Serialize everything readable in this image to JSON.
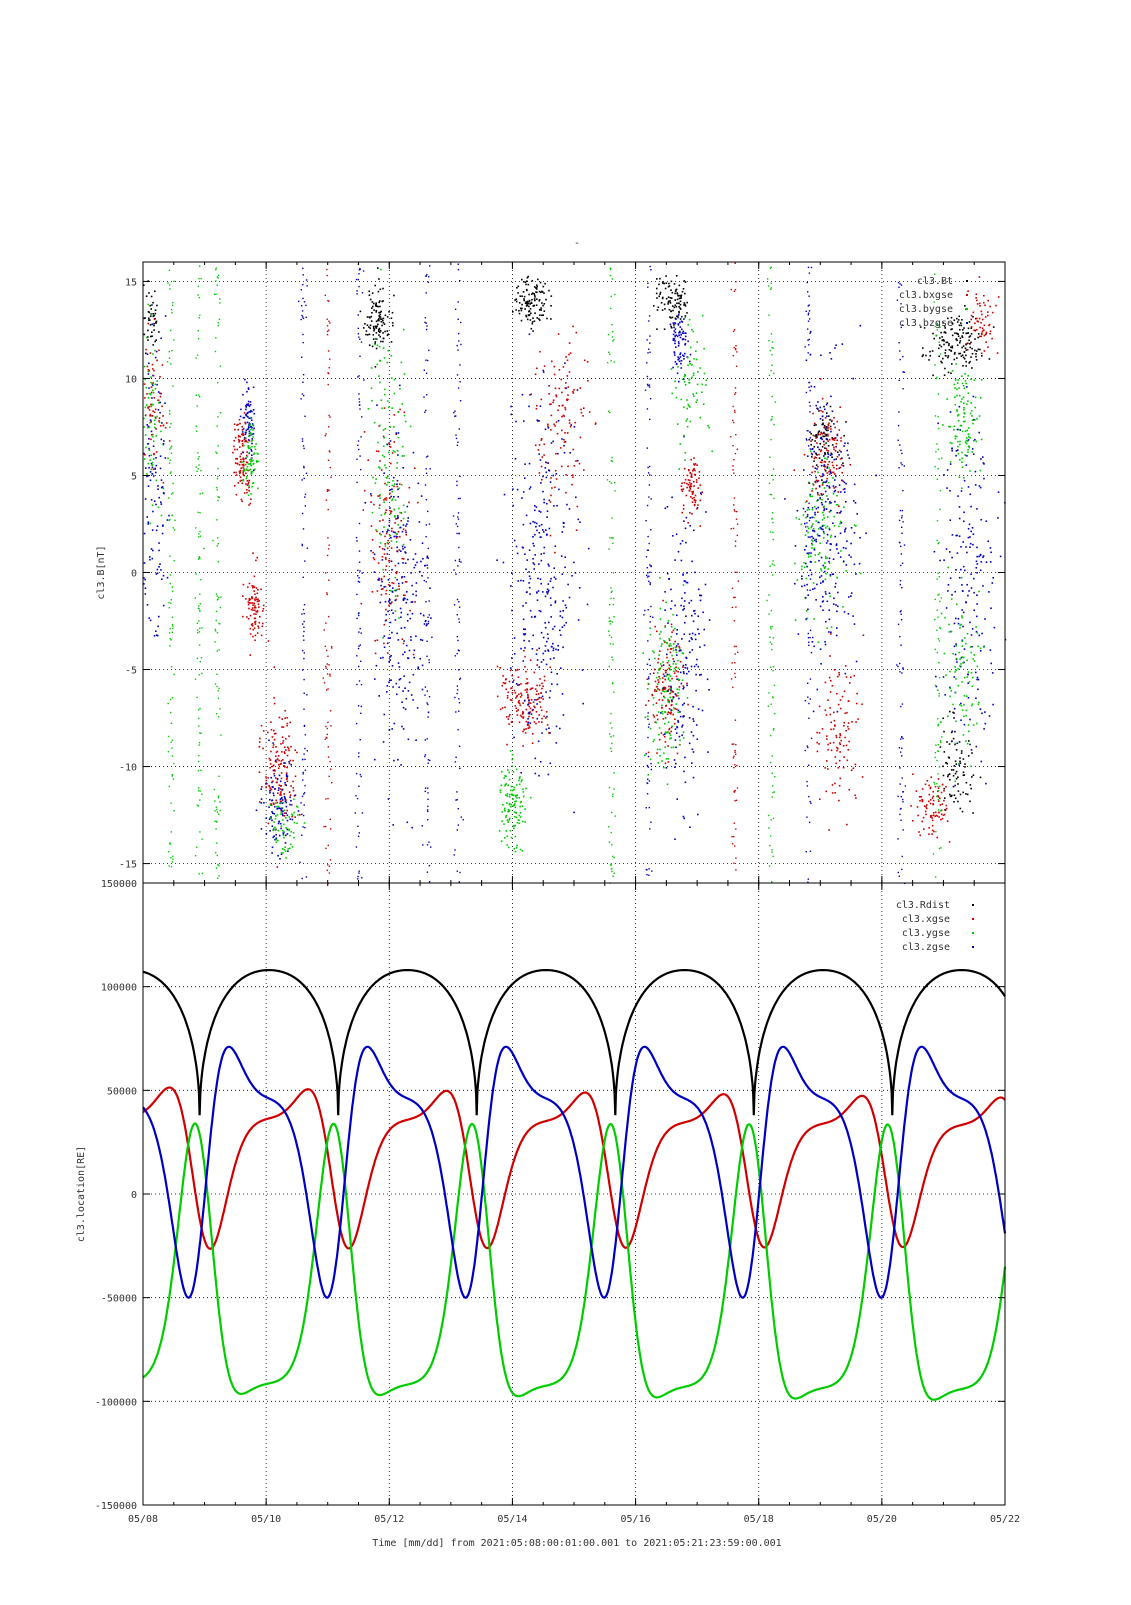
{
  "page_title": "-",
  "x_axis": {
    "label": "Time [mm/dd]  from 2021:05:08:00:01:00.001  to  2021:05:21:23:59:00.001",
    "ticks": [
      "05/08",
      "05/10",
      "05/12",
      "05/14",
      "05/16",
      "05/18",
      "05/20",
      "05/22"
    ],
    "range_days": [
      0,
      14
    ]
  },
  "colors": {
    "black": "#000000",
    "red": "#d00000",
    "green": "#00cc00",
    "blue": "#0000c0"
  },
  "chart_data": [
    {
      "type": "scatter",
      "title": "",
      "ylabel": "cl3.B[nT]",
      "xlabel": "",
      "ylim": [
        -16,
        16
      ],
      "yticks": [
        "15",
        "10",
        "5",
        "0",
        "-5",
        "-10",
        "-15"
      ],
      "grid": true,
      "legend_placement": "top-right",
      "series": [
        {
          "name": "cl3.Bt",
          "color": "black"
        },
        {
          "name": "cl3.bxgse",
          "color": "red"
        },
        {
          "name": "cl3.bygse",
          "color": "green"
        },
        {
          "name": "cl3.bzgse",
          "color": "blue"
        }
      ],
      "x_days": [
        0,
        14
      ]
    },
    {
      "type": "line",
      "title": "",
      "ylabel": "cl3.location[RE]",
      "xlabel": "Time [mm/dd]",
      "ylim": [
        -150000,
        150000
      ],
      "yticks": [
        "150000",
        "100000",
        "50000",
        "0",
        "-50000",
        "-100000",
        "-150000"
      ],
      "grid": true,
      "legend_placement": "top-right",
      "orbit_period_days": 2.25,
      "series": [
        {
          "name": "cl3.Rdist",
          "color": "black",
          "max": 108000,
          "min": 38000,
          "min_days": [
            0.92,
            3.17,
            5.42,
            7.67,
            9.92,
            12.17
          ]
        },
        {
          "name": "cl3.xgse",
          "color": "red",
          "first_peak": 51000,
          "last_peak": 36000,
          "first_trough": -26000,
          "last_trough": -23000
        },
        {
          "name": "cl3.ygse",
          "color": "green",
          "max": 34000,
          "first_min": -96000,
          "last_min": -102000
        },
        {
          "name": "cl3.zgse",
          "color": "blue",
          "max": 71000,
          "min": -50000
        }
      ]
    }
  ]
}
